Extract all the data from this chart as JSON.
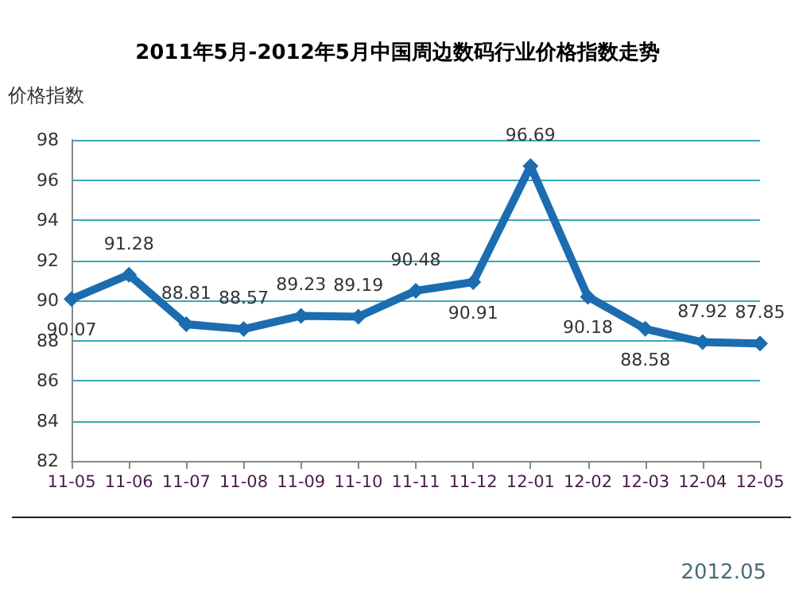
{
  "chart_data": {
    "type": "line",
    "title": "2011年5月-2012年5月中国周边数码行业价格指数走势",
    "ylabel": "价格指数",
    "categories": [
      "11-05",
      "11-06",
      "11-07",
      "11-08",
      "11-09",
      "11-10",
      "11-11",
      "11-12",
      "12-01",
      "12-02",
      "12-03",
      "12-04",
      "12-05"
    ],
    "series": [
      {
        "color": "#1c6cb0",
        "values": [
          90.07,
          91.28,
          88.81,
          88.57,
          89.23,
          89.19,
          90.48,
          90.91,
          96.69,
          90.18,
          88.58,
          87.92,
          87.85
        ]
      }
    ],
    "ylim": [
      82,
      98
    ],
    "yticks": [
      82,
      84,
      86,
      88,
      90,
      92,
      94,
      96,
      98
    ],
    "grid": "y",
    "marker": "diamond",
    "line_style": "solid",
    "data_labels": true,
    "annotations": [
      "2012.05"
    ]
  }
}
